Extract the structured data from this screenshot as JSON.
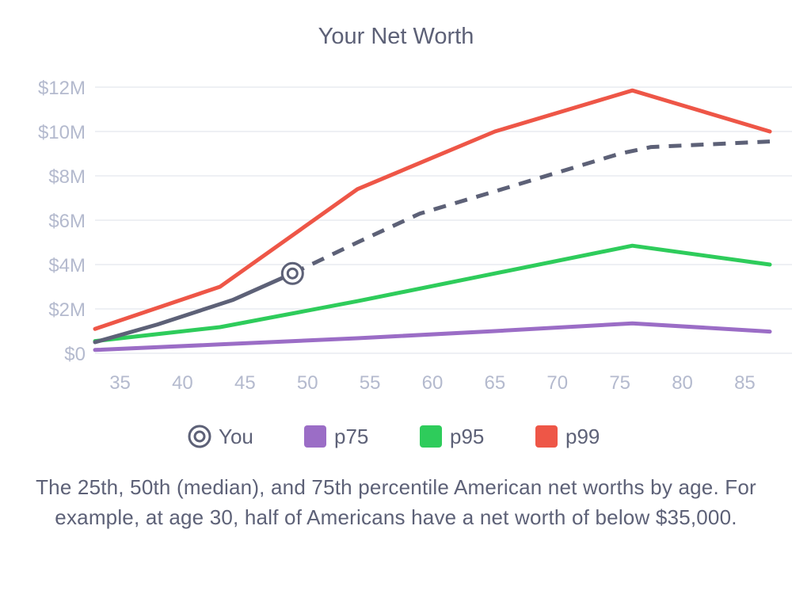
{
  "chart_data": {
    "type": "line",
    "title": "Your Net Worth",
    "xlabel": "",
    "ylabel": "",
    "x_ticks": [
      35,
      40,
      45,
      50,
      55,
      60,
      65,
      70,
      75,
      80,
      85
    ],
    "y_ticks": [
      0,
      2000000,
      4000000,
      6000000,
      8000000,
      10000000,
      12000000
    ],
    "y_tick_labels": [
      "$0",
      "$2M",
      "$4M",
      "$6M",
      "$8M",
      "$10M",
      "$12M"
    ],
    "xlim": [
      33,
      87
    ],
    "ylim": [
      0,
      12000000
    ],
    "grid": true,
    "legend_position": "bottom",
    "series": [
      {
        "name": "p75",
        "color": "#9b6dc6",
        "style": "solid",
        "points": [
          [
            33,
            150000
          ],
          [
            43,
            400000
          ],
          [
            54,
            680000
          ],
          [
            65,
            1000000
          ],
          [
            76,
            1350000
          ],
          [
            87,
            980000
          ]
        ]
      },
      {
        "name": "p95",
        "color": "#2ecc5b",
        "style": "solid",
        "points": [
          [
            33,
            550000
          ],
          [
            43,
            1180000
          ],
          [
            54,
            2350000
          ],
          [
            65,
            3600000
          ],
          [
            76,
            4850000
          ],
          [
            87,
            4000000
          ]
        ]
      },
      {
        "name": "p99",
        "color": "#ee5647",
        "style": "solid",
        "points": [
          [
            33,
            1100000
          ],
          [
            43,
            3000000
          ],
          [
            54,
            7400000
          ],
          [
            65,
            10000000
          ],
          [
            76,
            11850000
          ],
          [
            87,
            10000000
          ]
        ]
      },
      {
        "name": "You",
        "color": "#5d6177",
        "style": "solid",
        "points": [
          [
            33,
            500000
          ],
          [
            38,
            1300000
          ],
          [
            44,
            2400000
          ],
          [
            48.8,
            3600000
          ]
        ]
      },
      {
        "name": "You (projected)",
        "color": "#5d6177",
        "style": "dashed",
        "points": [
          [
            48.8,
            3600000
          ],
          [
            54,
            5000000
          ],
          [
            59,
            6300000
          ],
          [
            65,
            7300000
          ],
          [
            75,
            9000000
          ],
          [
            77.5,
            9300000
          ],
          [
            87,
            9550000
          ]
        ]
      }
    ],
    "marker": {
      "name": "You",
      "x": 48.8,
      "y": 3600000
    },
    "legend": [
      {
        "label": "You",
        "icon": "target-circle-icon",
        "color": "#5d6177"
      },
      {
        "label": "p75",
        "icon": "square",
        "color": "#9b6dc6"
      },
      {
        "label": "p95",
        "icon": "square",
        "color": "#2ecc5b"
      },
      {
        "label": "p99",
        "icon": "square",
        "color": "#ee5647"
      }
    ]
  },
  "caption": "The 25th, 50th (median), and 75th percentile American net worths by age. For example, at age 30, half of Americans have a net worth of below $35,000."
}
